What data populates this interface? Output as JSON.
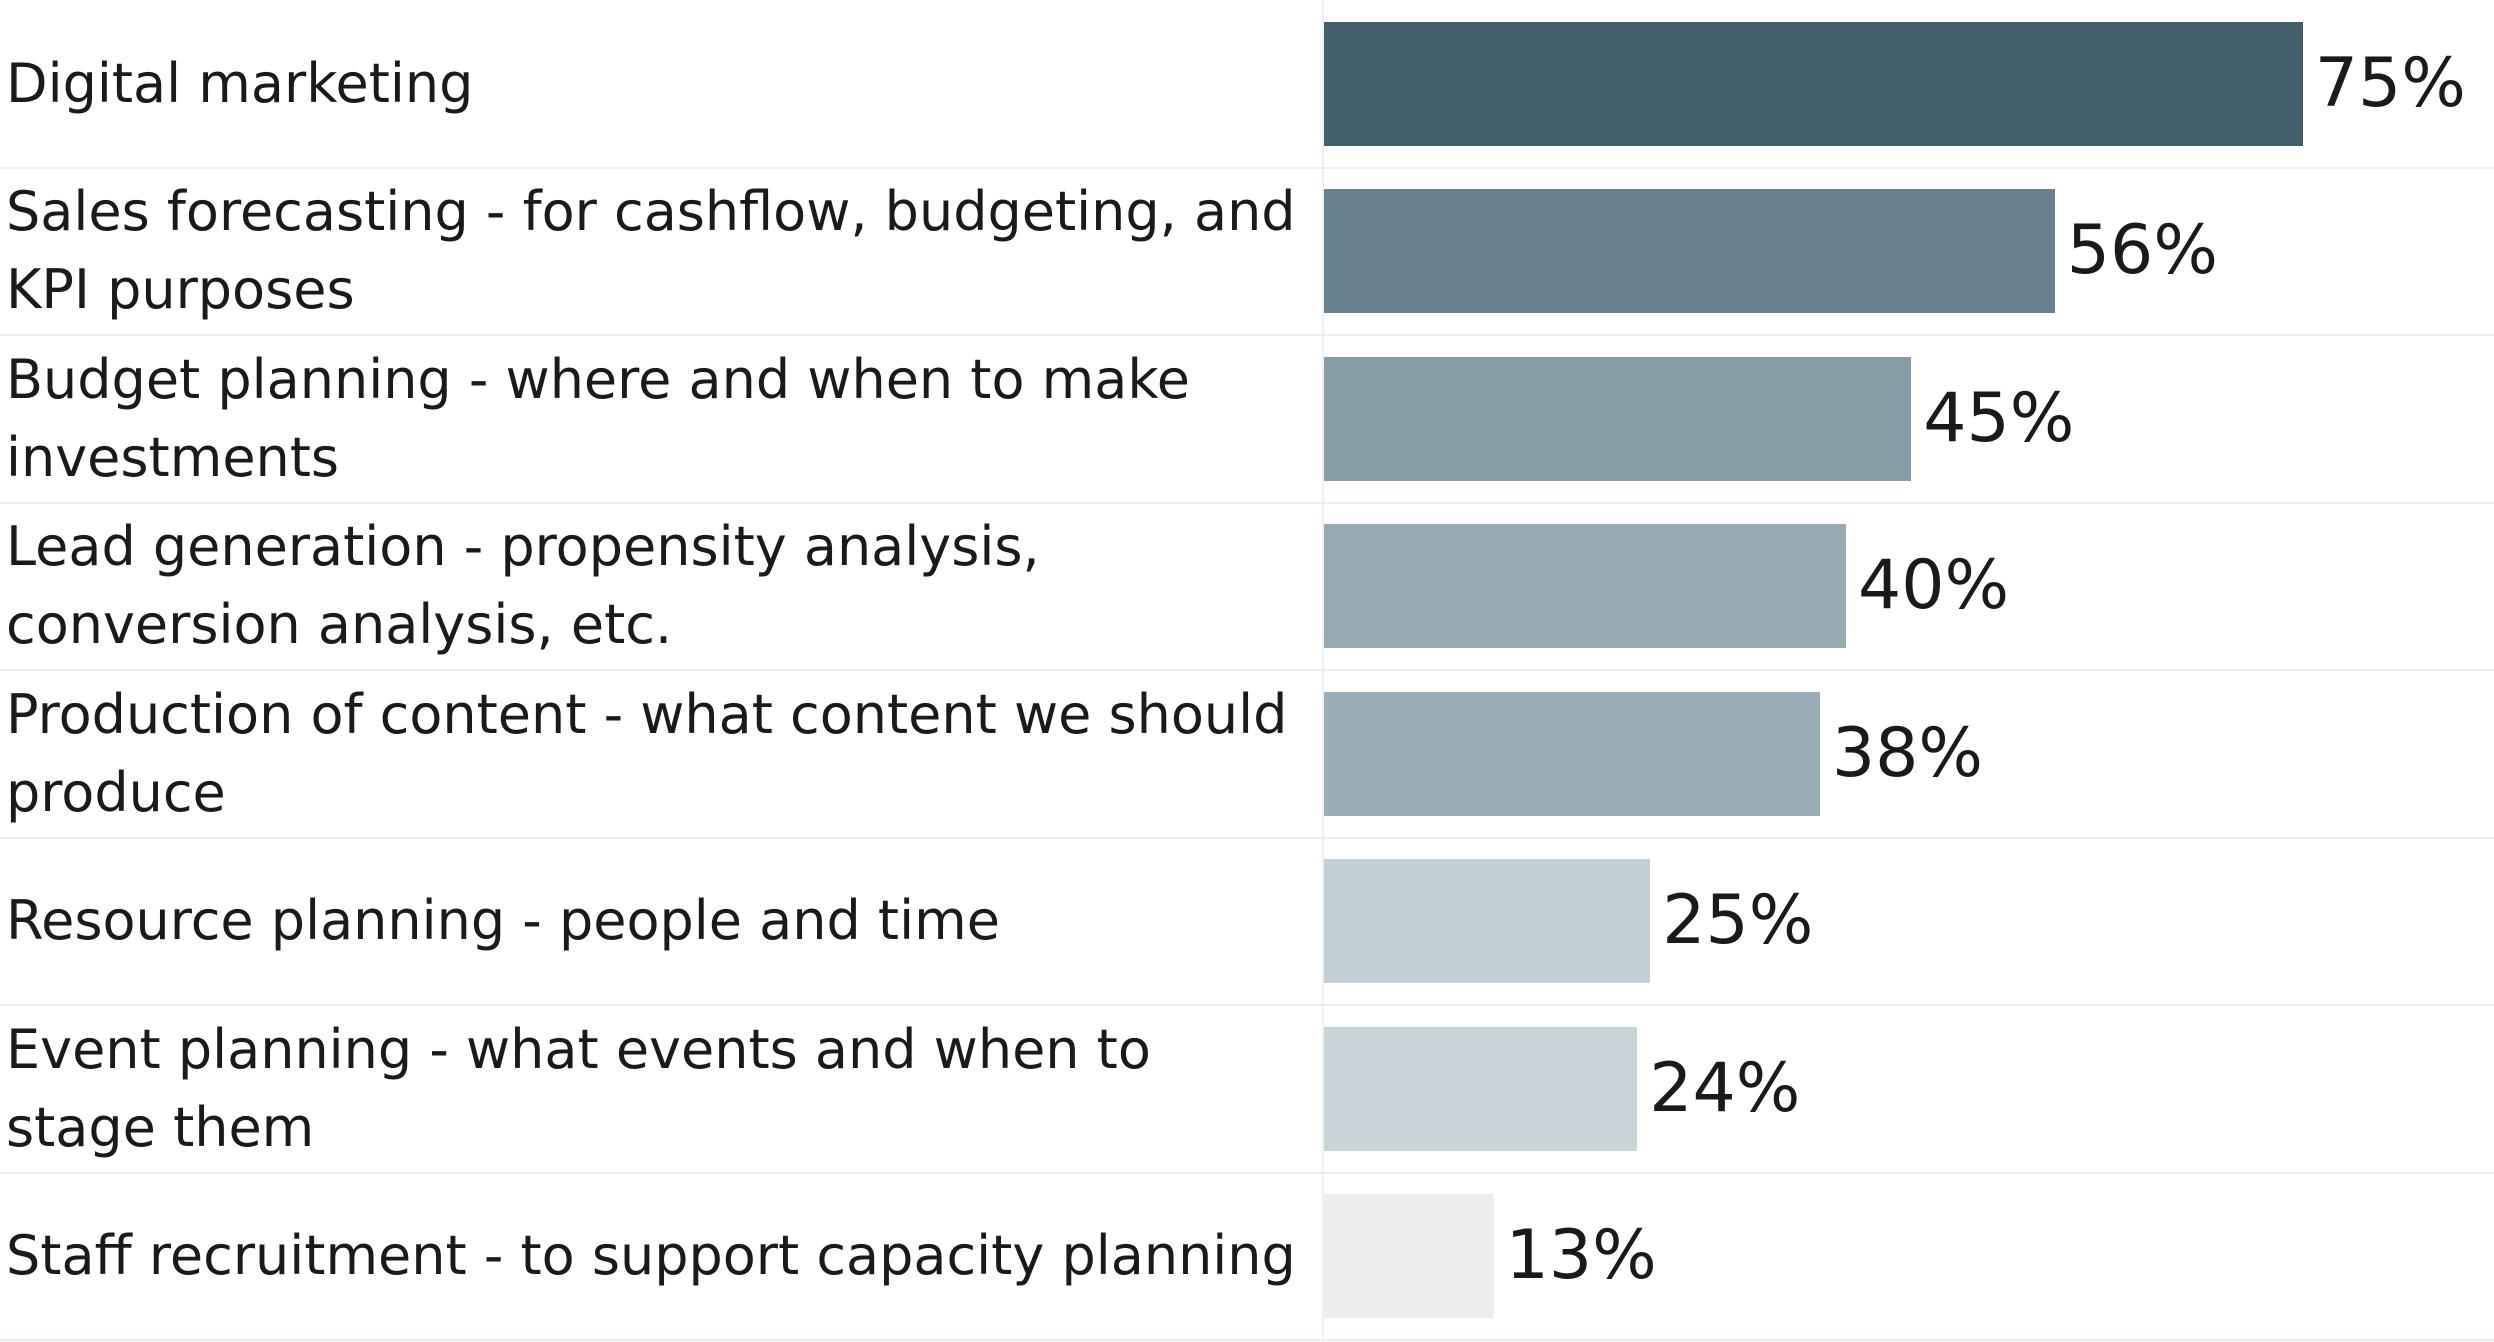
{
  "chart_data": {
    "type": "bar",
    "orientation": "horizontal",
    "categories": [
      "Digital marketing",
      "Sales forecasting - for cashflow, budgeting, and KPI purposes",
      "Budget planning - where and when to make investments",
      "Lead generation - propensity analysis, conversion analysis, etc.",
      "Production of content - what content we should produce",
      "Resource planning - people and time",
      "Event planning - what events and when to stage them",
      "Staff recruitment - to support capacity planning"
    ],
    "values": [
      75,
      56,
      45,
      40,
      38,
      25,
      24,
      13
    ],
    "value_labels": [
      "75%",
      "56%",
      "45%",
      "40%",
      "38%",
      "25%",
      "24%",
      "13%"
    ],
    "bar_colors": [
      "#425f6b",
      "#68838f",
      "#869ca6",
      "#95aab3",
      "#9aaeb8",
      "#c2d0d5",
      "#c9d4d9",
      "#eeeeee"
    ],
    "xlim": [
      0,
      100
    ],
    "grid": false,
    "legend": "none"
  }
}
